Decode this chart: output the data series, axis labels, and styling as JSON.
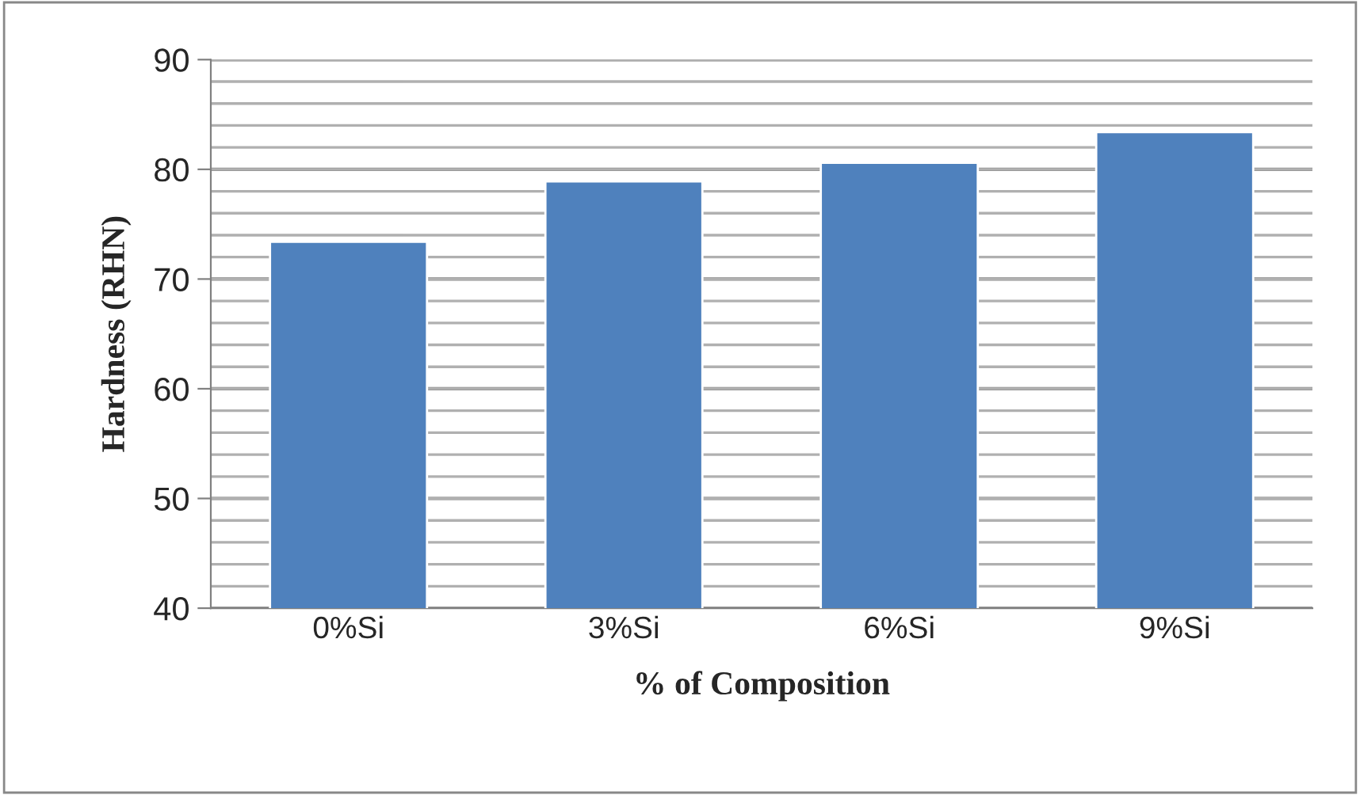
{
  "chart_data": {
    "type": "bar",
    "xlabel": "% of Composition",
    "ylabel": "Hardness (RHN)",
    "categories": [
      "0%Si",
      "3%Si",
      "6%Si",
      "9%Si"
    ],
    "values": [
      73.4,
      78.9,
      80.6,
      83.4
    ],
    "color": "#4f81bd",
    "ylim": [
      40,
      90
    ],
    "yticks": [
      40,
      50,
      60,
      70,
      80,
      90
    ],
    "grid": "y",
    "legend": false
  }
}
